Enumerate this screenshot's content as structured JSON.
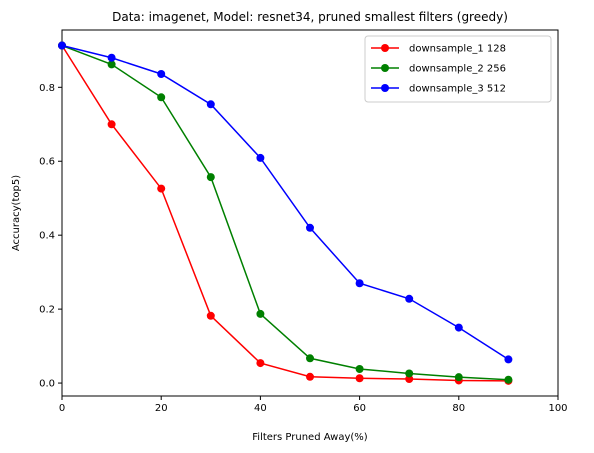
{
  "chart_data": {
    "type": "line",
    "title": "Data: imagenet, Model: resnet34, pruned smallest filters (greedy)",
    "xlabel": "Filters Pruned Away(%)",
    "ylabel": "Accuracy(top5)",
    "xlim": [
      0,
      100
    ],
    "ylim": [
      -0.035,
      0.955
    ],
    "xticks": [
      0,
      20,
      40,
      60,
      80,
      100
    ],
    "yticks": [
      0.0,
      0.2,
      0.4,
      0.6,
      0.8
    ],
    "xtick_labels": [
      "0",
      "20",
      "40",
      "60",
      "80",
      "100"
    ],
    "ytick_labels": [
      "0.0",
      "0.2",
      "0.4",
      "0.6",
      "0.8"
    ],
    "grid": false,
    "legend_position": "top-right",
    "x": [
      0,
      10,
      20,
      30,
      40,
      50,
      60,
      70,
      80,
      90
    ],
    "series": [
      {
        "name": "downsample_1 128",
        "color": "#ff0000",
        "values": [
          0.913,
          0.7,
          0.526,
          0.182,
          0.054,
          0.017,
          0.013,
          0.011,
          0.007,
          0.006
        ]
      },
      {
        "name": "downsample_2 256",
        "color": "#008000",
        "values": [
          0.913,
          0.862,
          0.773,
          0.557,
          0.187,
          0.067,
          0.038,
          0.026,
          0.016,
          0.009
        ]
      },
      {
        "name": "downsample_3 512",
        "color": "#0000ff",
        "values": [
          0.913,
          0.88,
          0.836,
          0.754,
          0.609,
          0.42,
          0.27,
          0.228,
          0.15,
          0.064
        ]
      }
    ]
  }
}
